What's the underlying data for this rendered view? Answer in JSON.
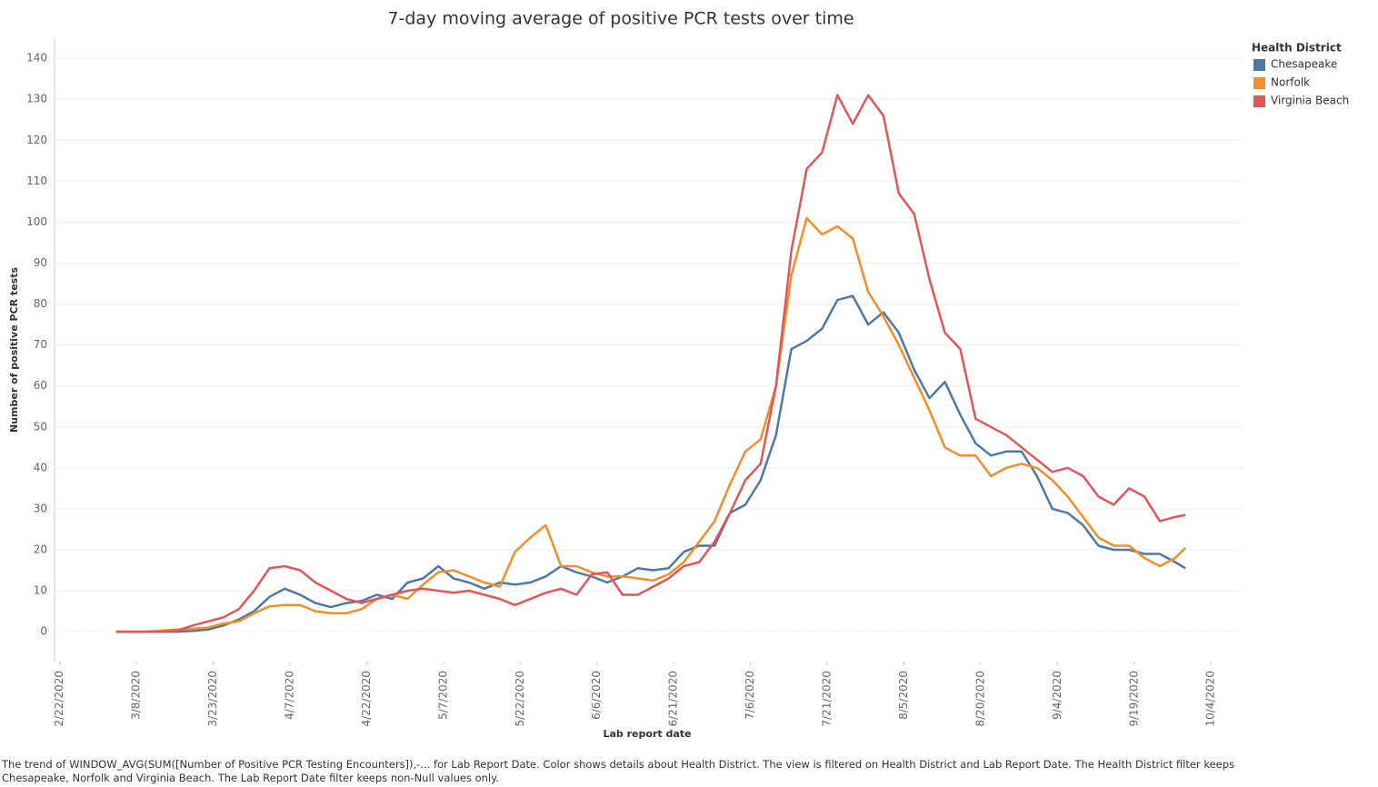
{
  "chart_data": {
    "type": "line",
    "title": "7-day moving average of positive PCR tests over time",
    "x_label": "Lab report date",
    "y_label": "Number of positive PCR tests",
    "legend_title": "Health District",
    "legend_position": "right",
    "footnote": "The trend of WINDOW_AVG(SUM([Number of Positive PCR Testing Encounters]),-... for Lab Report Date.  Color shows details about Health District. The view is filtered on Health District and Lab Report Date. The Health District filter keeps Chesapeake, Norfolk and Virginia Beach. The Lab Report Date filter keeps non-Null values only.",
    "grid": true,
    "xlim": [
      "2/21/2020",
      "10/10/2020"
    ],
    "xticks": [
      "2/22/2020",
      "3/8/2020",
      "3/23/2020",
      "4/7/2020",
      "4/22/2020",
      "5/7/2020",
      "5/22/2020",
      "6/6/2020",
      "6/21/2020",
      "7/6/2020",
      "7/21/2020",
      "8/5/2020",
      "8/20/2020",
      "9/4/2020",
      "9/19/2020",
      "10/4/2020"
    ],
    "ylim": [
      -7.3,
      144.7
    ],
    "yticks": [
      0,
      10,
      20,
      30,
      40,
      50,
      60,
      70,
      80,
      90,
      100,
      110,
      120,
      130,
      140
    ],
    "x": [
      "3/4/2020",
      "3/7/2020",
      "3/10/2020",
      "3/13/2020",
      "3/16/2020",
      "3/19/2020",
      "3/22/2020",
      "3/25/2020",
      "3/28/2020",
      "3/31/2020",
      "4/3/2020",
      "4/6/2020",
      "4/9/2020",
      "4/12/2020",
      "4/15/2020",
      "4/18/2020",
      "4/21/2020",
      "4/24/2020",
      "4/27/2020",
      "4/30/2020",
      "5/3/2020",
      "5/6/2020",
      "5/9/2020",
      "5/12/2020",
      "5/15/2020",
      "5/18/2020",
      "5/21/2020",
      "5/24/2020",
      "5/27/2020",
      "5/30/2020",
      "6/2/2020",
      "6/5/2020",
      "6/8/2020",
      "6/11/2020",
      "6/14/2020",
      "6/17/2020",
      "6/20/2020",
      "6/23/2020",
      "6/26/2020",
      "6/29/2020",
      "7/2/2020",
      "7/5/2020",
      "7/8/2020",
      "7/11/2020",
      "7/14/2020",
      "7/17/2020",
      "7/20/2020",
      "7/23/2020",
      "7/26/2020",
      "7/29/2020",
      "8/1/2020",
      "8/4/2020",
      "8/7/2020",
      "8/10/2020",
      "8/13/2020",
      "8/16/2020",
      "8/19/2020",
      "8/22/2020",
      "8/25/2020",
      "8/28/2020",
      "8/31/2020",
      "9/3/2020",
      "9/6/2020",
      "9/9/2020",
      "9/12/2020",
      "9/15/2020",
      "9/18/2020",
      "9/21/2020",
      "9/24/2020",
      "9/27/2020",
      "9/29/2020"
    ],
    "series": [
      {
        "name": "Chesapeake",
        "color": "#4e79a7",
        "values": [
          0,
          0,
          0,
          0,
          0,
          0.2,
          0.5,
          1.5,
          3,
          5,
          8.5,
          10.5,
          9,
          7,
          6,
          7,
          7.5,
          9,
          8,
          12,
          13,
          16,
          13,
          12,
          10.5,
          12,
          11.5,
          12,
          13.5,
          16,
          14.5,
          13.5,
          12,
          13.5,
          15.5,
          15,
          15.5,
          19.5,
          21,
          21,
          29,
          31,
          37,
          48,
          69,
          71,
          74,
          81,
          82,
          75,
          78,
          73,
          64,
          57,
          61,
          53,
          46,
          43,
          44,
          44,
          38,
          30,
          29,
          26,
          21,
          20,
          20,
          19,
          19,
          17,
          15.5
        ]
      },
      {
        "name": "Norfolk",
        "color": "#f28e2b",
        "values": [
          0,
          0,
          0,
          0.3,
          0.5,
          0.7,
          1,
          2,
          2.5,
          4.5,
          6.2,
          6.5,
          6.5,
          5,
          4.5,
          4.5,
          5.5,
          8,
          9,
          8,
          11.5,
          14.5,
          15,
          13.5,
          12,
          11,
          19.5,
          23,
          26,
          16,
          16,
          14.5,
          13.5,
          13.5,
          13,
          12.5,
          14,
          17,
          22,
          27,
          36,
          44,
          47,
          60,
          87,
          101,
          97,
          99,
          96,
          83,
          77,
          70,
          62,
          54,
          45,
          43,
          43,
          38,
          40,
          41,
          40,
          37,
          33,
          28,
          23,
          21,
          21,
          18,
          16,
          18,
          20.5
        ]
      },
      {
        "name": "Virginia Beach",
        "color": "#e15759",
        "values": [
          0,
          0,
          0,
          0,
          0.3,
          1.5,
          2.5,
          3.5,
          5.5,
          10,
          15.5,
          16,
          15,
          12,
          10,
          8,
          7,
          8,
          9,
          10,
          10.5,
          10,
          9.5,
          10,
          9,
          8,
          6.5,
          8,
          9.5,
          10.5,
          9,
          14,
          14.5,
          9,
          9,
          11,
          13,
          16,
          17,
          22,
          29,
          37,
          41,
          60,
          93,
          113,
          117,
          131,
          124,
          131,
          126,
          107,
          102,
          86,
          73,
          69,
          52,
          50,
          48,
          45,
          42,
          39,
          40,
          38,
          33,
          31,
          35,
          33,
          27,
          28,
          28.5
        ]
      }
    ]
  }
}
